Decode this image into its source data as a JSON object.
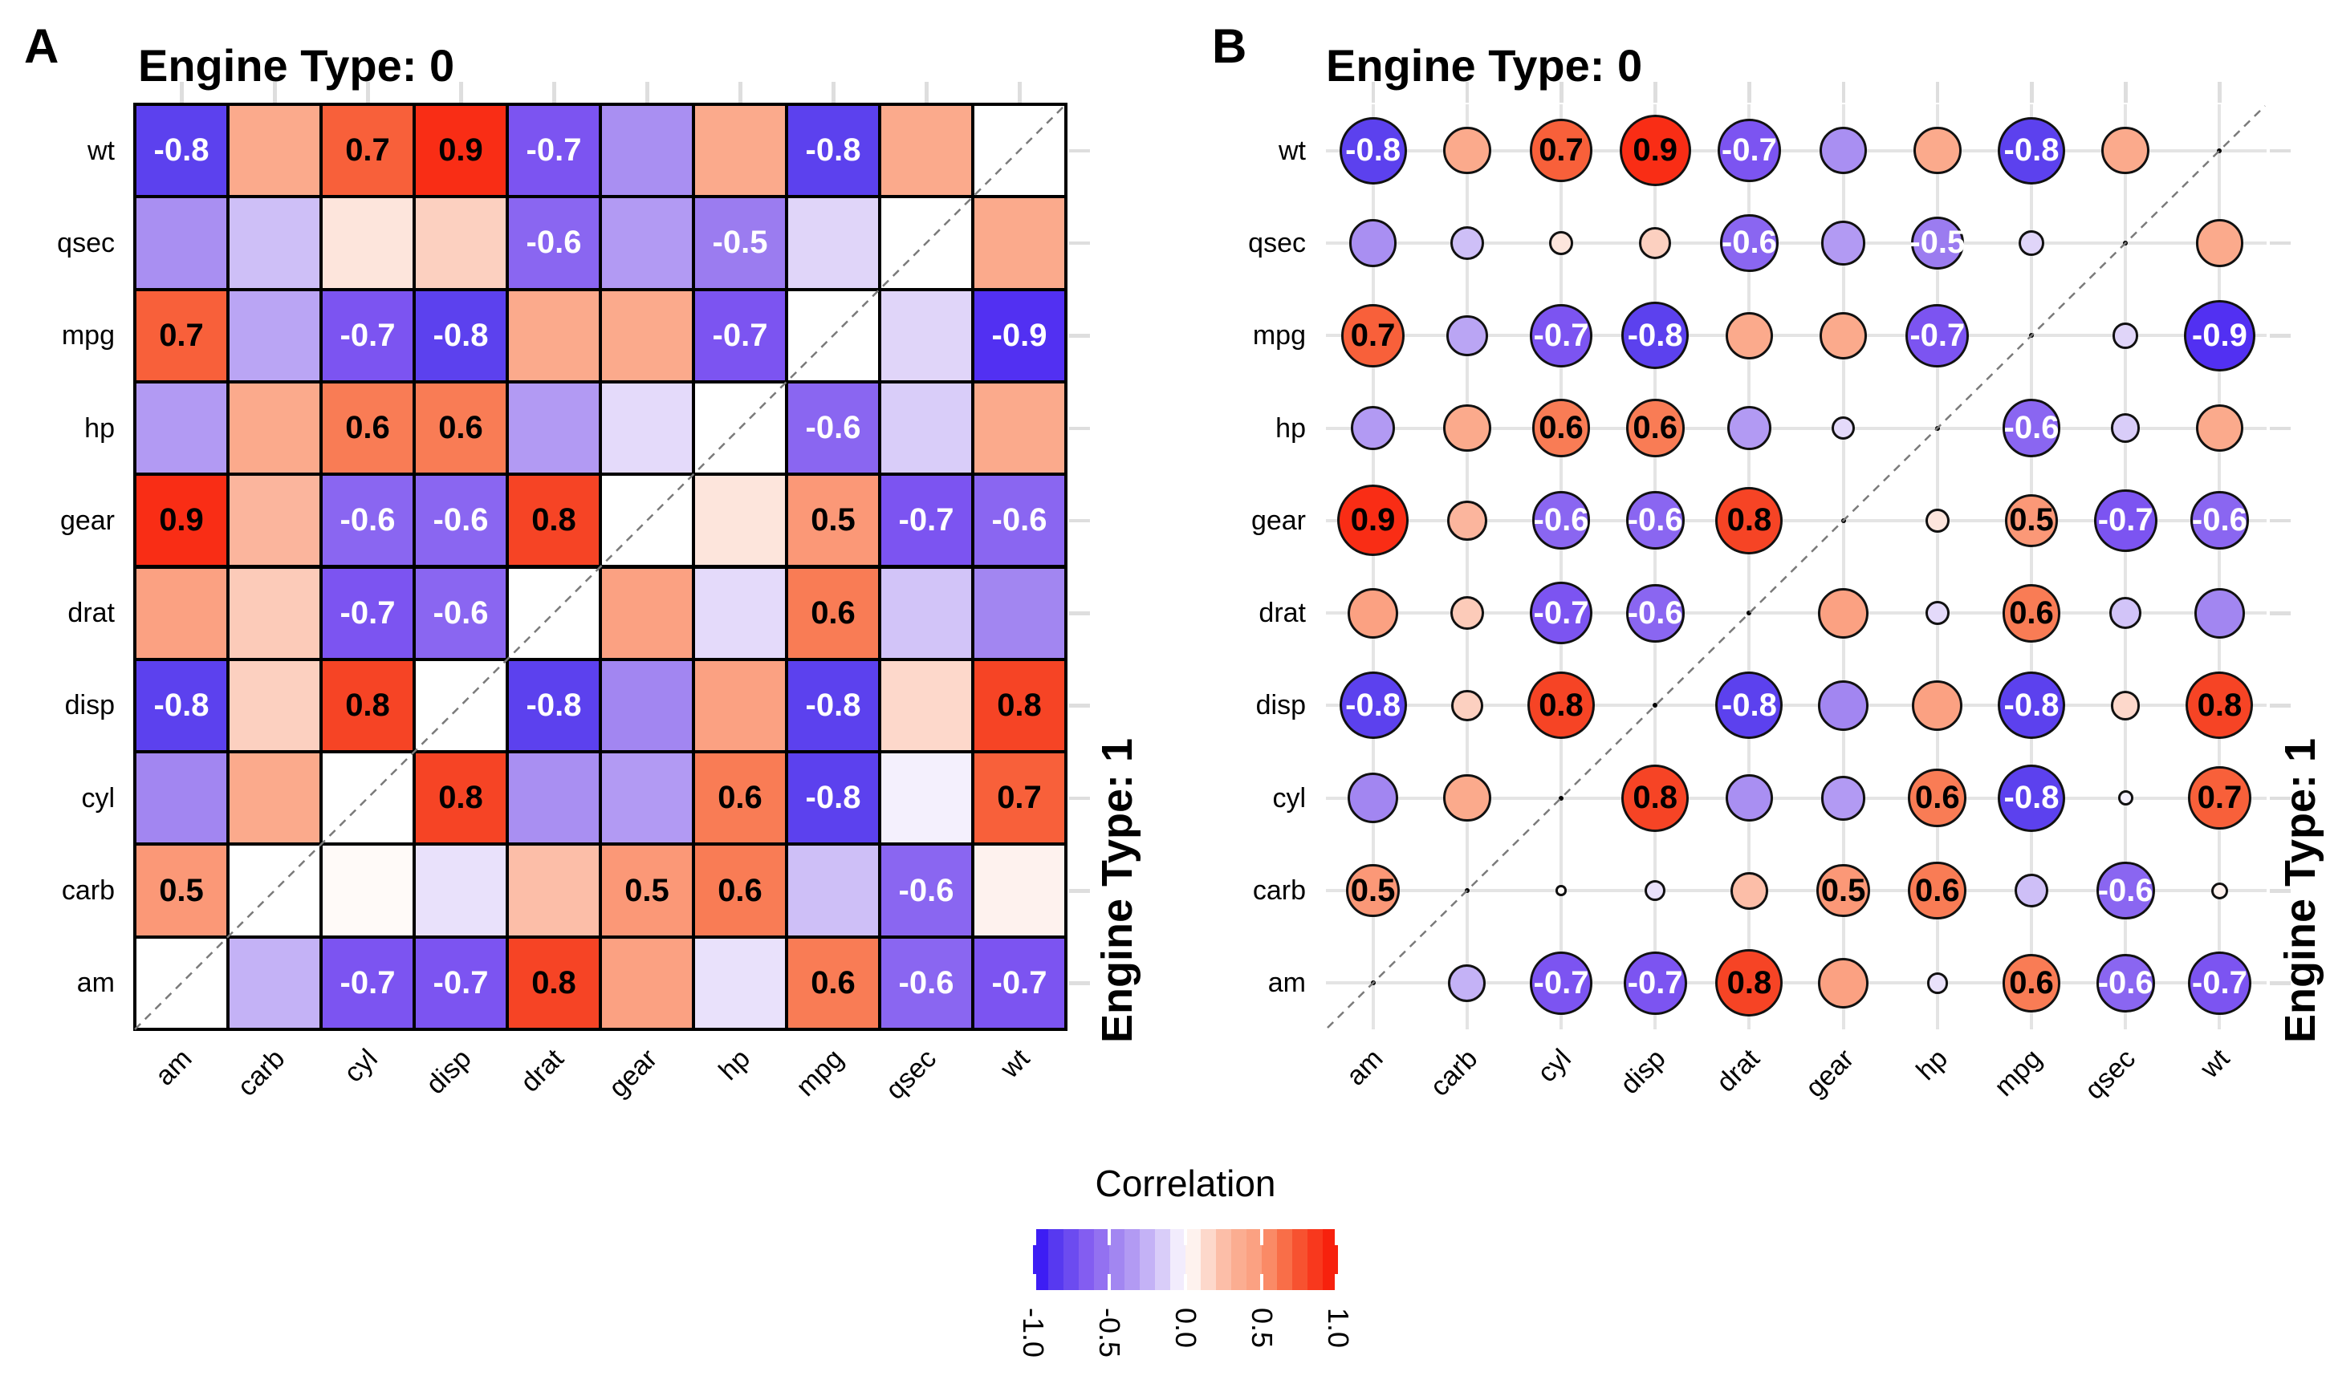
{
  "figure": {
    "panels": [
      {
        "id": "A",
        "label": "A",
        "title": "Engine Type: 0",
        "strip_right": "Engine Type: 1",
        "style": "heatmap-squares"
      },
      {
        "id": "B",
        "label": "B",
        "title": "Engine Type: 0",
        "strip_right": "Engine Type: 1",
        "style": "circles-sized-by-abs-correlation"
      }
    ],
    "legend": {
      "title": "Correlation",
      "ticks": [
        "-1.0",
        "-0.5",
        "0.0",
        "0.5",
        "1.0"
      ]
    }
  },
  "chart_data": {
    "type": "heatmap",
    "title": "Pairwise correlation matrices faceted by engine type",
    "variables": [
      "am",
      "carb",
      "cyl",
      "disp",
      "drat",
      "gear",
      "hp",
      "mpg",
      "qsec",
      "wt"
    ],
    "rows_top_to_bottom": [
      "wt",
      "qsec",
      "mpg",
      "hp",
      "gear",
      "drat",
      "disp",
      "cyl",
      "carb",
      "am"
    ],
    "upper_triangle_facet": "Engine Type: 0",
    "lower_triangle_facet": "Engine Type: 1",
    "diagonal": "empty (dashed identity line)",
    "label_threshold": 0.5,
    "colorscale": {
      "low": "#280AF5",
      "mid": "#FFFFFF",
      "high": "#F41505",
      "limits": [
        -1,
        1
      ]
    },
    "legend_title": "Correlation",
    "legend_ticks": [
      -1.0,
      -0.5,
      0.0,
      0.5,
      1.0
    ],
    "matrix_rows_top_to_bottom": [
      [
        -0.8,
        0.4,
        0.7,
        0.9,
        -0.7,
        -0.4,
        0.4,
        -0.8,
        0.4,
        null
      ],
      [
        -0.4,
        -0.2,
        0.1,
        0.18,
        -0.6,
        -0.35,
        -0.5,
        -0.12,
        null,
        0.4
      ],
      [
        0.7,
        -0.3,
        -0.7,
        -0.8,
        0.4,
        0.4,
        -0.7,
        null,
        -0.12,
        -0.9
      ],
      [
        -0.35,
        0.4,
        0.6,
        0.6,
        -0.35,
        -0.1,
        null,
        -0.6,
        -0.15,
        0.4
      ],
      [
        0.9,
        0.28,
        -0.6,
        -0.6,
        0.8,
        null,
        0.1,
        0.5,
        -0.7,
        -0.6
      ],
      [
        0.45,
        0.2,
        -0.7,
        -0.6,
        null,
        0.45,
        -0.1,
        0.6,
        -0.18,
        -0.45
      ],
      [
        -0.8,
        0.18,
        0.8,
        null,
        -0.8,
        -0.45,
        0.45,
        -0.8,
        0.15,
        0.8
      ],
      [
        -0.45,
        0.4,
        null,
        0.8,
        -0.4,
        -0.35,
        0.6,
        -0.8,
        -0.04,
        0.7
      ],
      [
        0.5,
        null,
        0.02,
        -0.08,
        0.25,
        0.5,
        0.6,
        -0.2,
        -0.6,
        0.05
      ],
      [
        null,
        -0.25,
        -0.7,
        -0.7,
        0.8,
        0.45,
        -0.08,
        0.6,
        -0.6,
        -0.7
      ]
    ]
  }
}
